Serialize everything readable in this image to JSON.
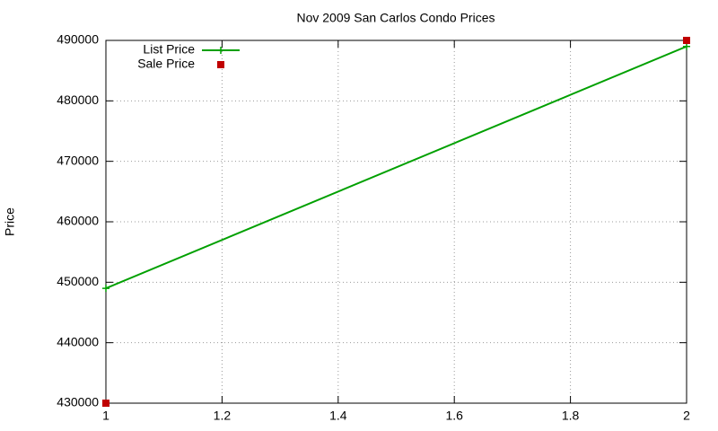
{
  "chart_data": {
    "type": "line",
    "title": "Nov 2009 San Carlos Condo Prices",
    "y_label": "Price",
    "x": [
      1,
      2
    ],
    "series": [
      {
        "name": "List Price",
        "color": "#00a000",
        "style": "linespoints",
        "values": [
          449000,
          489000
        ]
      },
      {
        "name": "Sale Price",
        "color": "#c00000",
        "style": "points",
        "values": [
          430000,
          490000
        ]
      }
    ],
    "xlim": [
      1,
      2
    ],
    "xticks": [
      1,
      1.2,
      1.4,
      1.6,
      1.8,
      2
    ],
    "ylim": [
      430000,
      490000
    ],
    "yticks": [
      430000,
      440000,
      450000,
      460000,
      470000,
      480000,
      490000
    ],
    "grid": true,
    "legend": "top-left"
  }
}
